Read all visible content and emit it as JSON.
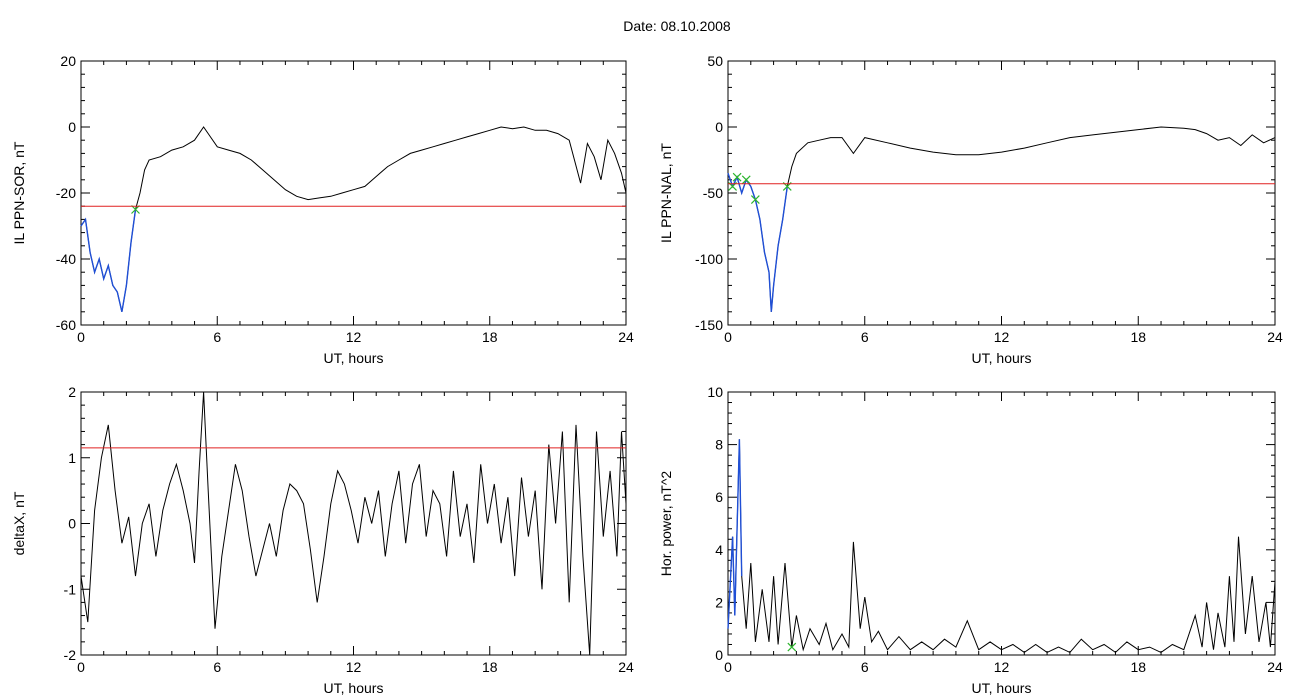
{
  "header": {
    "date_label": "Date:",
    "date_value": "08.10.2008"
  },
  "chart_data": [
    {
      "type": "line",
      "ylabel": "IL PPN-SOR, nT",
      "xlabel": "UT, hours",
      "xlim": [
        0,
        24
      ],
      "ylim": [
        -60,
        20
      ],
      "xticks": [
        0,
        6,
        12,
        18,
        24
      ],
      "yticks": [
        -60,
        -40,
        -20,
        0,
        20
      ],
      "threshold": -24,
      "highlight_range": [
        0,
        2.5
      ],
      "markers": [
        2.4
      ],
      "series": [
        {
          "color": "#000000",
          "points": [
            [
              0,
              -30
            ],
            [
              0.2,
              -28
            ],
            [
              0.4,
              -38
            ],
            [
              0.6,
              -44
            ],
            [
              0.8,
              -40
            ],
            [
              1.0,
              -46
            ],
            [
              1.2,
              -42
            ],
            [
              1.4,
              -48
            ],
            [
              1.6,
              -50
            ],
            [
              1.8,
              -56
            ],
            [
              2.0,
              -48
            ],
            [
              2.2,
              -35
            ],
            [
              2.4,
              -25
            ],
            [
              2.6,
              -20
            ],
            [
              2.8,
              -13
            ],
            [
              3.0,
              -10
            ],
            [
              3.5,
              -9
            ],
            [
              4.0,
              -7
            ],
            [
              4.5,
              -6
            ],
            [
              5.0,
              -4
            ],
            [
              5.4,
              0
            ],
            [
              5.6,
              -2
            ],
            [
              6.0,
              -6
            ],
            [
              6.5,
              -7
            ],
            [
              7.0,
              -8
            ],
            [
              7.5,
              -10
            ],
            [
              8.0,
              -13
            ],
            [
              8.5,
              -16
            ],
            [
              9.0,
              -19
            ],
            [
              9.5,
              -21
            ],
            [
              10.0,
              -22
            ],
            [
              10.5,
              -21.5
            ],
            [
              11.0,
              -21
            ],
            [
              11.5,
              -20
            ],
            [
              12.0,
              -19
            ],
            [
              12.5,
              -18
            ],
            [
              13.0,
              -15
            ],
            [
              13.5,
              -12
            ],
            [
              14.0,
              -10
            ],
            [
              14.5,
              -8
            ],
            [
              15.0,
              -7
            ],
            [
              15.5,
              -6
            ],
            [
              16.0,
              -5
            ],
            [
              16.5,
              -4
            ],
            [
              17.0,
              -3
            ],
            [
              17.5,
              -2
            ],
            [
              18.0,
              -1
            ],
            [
              18.5,
              0
            ],
            [
              19.0,
              -0.5
            ],
            [
              19.5,
              0
            ],
            [
              20.0,
              -1
            ],
            [
              20.5,
              -1
            ],
            [
              21.0,
              -2
            ],
            [
              21.5,
              -4
            ],
            [
              22.0,
              -17
            ],
            [
              22.3,
              -5
            ],
            [
              22.6,
              -9
            ],
            [
              22.9,
              -16
            ],
            [
              23.2,
              -4
            ],
            [
              23.5,
              -8
            ],
            [
              23.8,
              -14
            ],
            [
              24.0,
              -20
            ]
          ]
        }
      ]
    },
    {
      "type": "line",
      "ylabel": "IL PPN-NAL, nT",
      "xlabel": "UT, hours",
      "xlim": [
        0,
        24
      ],
      "ylim": [
        -150,
        50
      ],
      "xticks": [
        0,
        6,
        12,
        18,
        24
      ],
      "yticks": [
        -150,
        -100,
        -50,
        0,
        50
      ],
      "threshold": -43,
      "highlight_range": [
        0,
        2.7
      ],
      "markers": [
        0.2,
        0.5,
        0.9,
        1.2,
        2.6
      ],
      "series": [
        {
          "color": "#000000",
          "points": [
            [
              0,
              -35
            ],
            [
              0.2,
              -45
            ],
            [
              0.4,
              -38
            ],
            [
              0.6,
              -50
            ],
            [
              0.8,
              -40
            ],
            [
              1.0,
              -45
            ],
            [
              1.2,
              -55
            ],
            [
              1.4,
              -70
            ],
            [
              1.6,
              -95
            ],
            [
              1.8,
              -110
            ],
            [
              1.9,
              -140
            ],
            [
              2.0,
              -120
            ],
            [
              2.2,
              -90
            ],
            [
              2.4,
              -70
            ],
            [
              2.6,
              -45
            ],
            [
              2.8,
              -30
            ],
            [
              3.0,
              -20
            ],
            [
              3.5,
              -12
            ],
            [
              4.0,
              -10
            ],
            [
              4.5,
              -8
            ],
            [
              5.0,
              -8
            ],
            [
              5.5,
              -20
            ],
            [
              6.0,
              -8
            ],
            [
              7.0,
              -12
            ],
            [
              8.0,
              -16
            ],
            [
              9.0,
              -19
            ],
            [
              10.0,
              -21
            ],
            [
              11.0,
              -21
            ],
            [
              12.0,
              -19
            ],
            [
              13.0,
              -16
            ],
            [
              14.0,
              -12
            ],
            [
              15.0,
              -8
            ],
            [
              16.0,
              -6
            ],
            [
              17.0,
              -4
            ],
            [
              18.0,
              -2
            ],
            [
              19.0,
              0
            ],
            [
              20.0,
              -1
            ],
            [
              20.5,
              -2
            ],
            [
              21.0,
              -5
            ],
            [
              21.5,
              -10
            ],
            [
              22.0,
              -8
            ],
            [
              22.5,
              -14
            ],
            [
              23.0,
              -6
            ],
            [
              23.5,
              -12
            ],
            [
              24.0,
              -8
            ]
          ]
        }
      ]
    },
    {
      "type": "line",
      "ylabel": "deltaX, nT",
      "xlabel": "UT, hours",
      "xlim": [
        0,
        24
      ],
      "ylim": [
        -2,
        2
      ],
      "xticks": [
        0,
        6,
        12,
        18,
        24
      ],
      "yticks": [
        -2,
        -1,
        0,
        1,
        2
      ],
      "threshold": 1.15,
      "series": [
        {
          "color": "#000000",
          "points": [
            [
              0,
              -0.8
            ],
            [
              0.3,
              -1.5
            ],
            [
              0.6,
              0.2
            ],
            [
              0.9,
              1.0
            ],
            [
              1.2,
              1.5
            ],
            [
              1.5,
              0.5
            ],
            [
              1.8,
              -0.3
            ],
            [
              2.1,
              0.1
            ],
            [
              2.4,
              -0.8
            ],
            [
              2.7,
              0.0
            ],
            [
              3.0,
              0.3
            ],
            [
              3.3,
              -0.5
            ],
            [
              3.6,
              0.2
            ],
            [
              3.9,
              0.6
            ],
            [
              4.2,
              0.9
            ],
            [
              4.5,
              0.5
            ],
            [
              4.8,
              0.0
            ],
            [
              5.0,
              -0.6
            ],
            [
              5.2,
              0.8
            ],
            [
              5.4,
              2.0
            ],
            [
              5.6,
              0.5
            ],
            [
              5.9,
              -1.6
            ],
            [
              6.2,
              -0.5
            ],
            [
              6.5,
              0.2
            ],
            [
              6.8,
              0.9
            ],
            [
              7.1,
              0.5
            ],
            [
              7.4,
              -0.2
            ],
            [
              7.7,
              -0.8
            ],
            [
              8.0,
              -0.4
            ],
            [
              8.3,
              0.0
            ],
            [
              8.6,
              -0.5
            ],
            [
              8.9,
              0.2
            ],
            [
              9.2,
              0.6
            ],
            [
              9.5,
              0.5
            ],
            [
              9.8,
              0.3
            ],
            [
              10.1,
              -0.4
            ],
            [
              10.4,
              -1.2
            ],
            [
              10.7,
              -0.5
            ],
            [
              11.0,
              0.3
            ],
            [
              11.3,
              0.8
            ],
            [
              11.6,
              0.6
            ],
            [
              11.9,
              0.2
            ],
            [
              12.2,
              -0.3
            ],
            [
              12.5,
              0.4
            ],
            [
              12.8,
              0.0
            ],
            [
              13.1,
              0.5
            ],
            [
              13.4,
              -0.5
            ],
            [
              13.7,
              0.3
            ],
            [
              14.0,
              0.8
            ],
            [
              14.3,
              -0.3
            ],
            [
              14.6,
              0.6
            ],
            [
              14.9,
              0.9
            ],
            [
              15.2,
              -0.2
            ],
            [
              15.5,
              0.5
            ],
            [
              15.8,
              0.3
            ],
            [
              16.1,
              -0.5
            ],
            [
              16.4,
              0.8
            ],
            [
              16.7,
              -0.2
            ],
            [
              17.0,
              0.3
            ],
            [
              17.3,
              -0.6
            ],
            [
              17.6,
              0.9
            ],
            [
              17.9,
              0.0
            ],
            [
              18.2,
              0.6
            ],
            [
              18.5,
              -0.3
            ],
            [
              18.8,
              0.4
            ],
            [
              19.1,
              -0.8
            ],
            [
              19.4,
              0.7
            ],
            [
              19.7,
              -0.2
            ],
            [
              20.0,
              0.5
            ],
            [
              20.3,
              -1.0
            ],
            [
              20.6,
              1.2
            ],
            [
              20.9,
              0.0
            ],
            [
              21.2,
              1.4
            ],
            [
              21.5,
              -1.2
            ],
            [
              21.8,
              1.5
            ],
            [
              22.1,
              -0.5
            ],
            [
              22.4,
              -2.0
            ],
            [
              22.7,
              1.4
            ],
            [
              23.0,
              -0.2
            ],
            [
              23.3,
              0.8
            ],
            [
              23.6,
              -0.5
            ],
            [
              23.8,
              1.4
            ],
            [
              24.0,
              0.3
            ]
          ]
        }
      ]
    },
    {
      "type": "line",
      "ylabel": "Hor. power, nT^2",
      "xlabel": "UT, hours",
      "xlim": [
        0,
        24
      ],
      "ylim": [
        0,
        10
      ],
      "xticks": [
        0,
        6,
        12,
        18,
        24
      ],
      "yticks": [
        0,
        2,
        4,
        6,
        8,
        10
      ],
      "highlight_range": [
        0,
        0.6
      ],
      "markers": [
        2.7
      ],
      "series": [
        {
          "color": "#000000",
          "points": [
            [
              0,
              1.0
            ],
            [
              0.2,
              4.5
            ],
            [
              0.3,
              1.5
            ],
            [
              0.5,
              8.2
            ],
            [
              0.6,
              3.0
            ],
            [
              0.8,
              1.0
            ],
            [
              1.0,
              3.5
            ],
            [
              1.2,
              0.5
            ],
            [
              1.5,
              2.5
            ],
            [
              1.8,
              0.5
            ],
            [
              2.0,
              3.0
            ],
            [
              2.2,
              0.4
            ],
            [
              2.5,
              3.5
            ],
            [
              2.8,
              0.3
            ],
            [
              3.0,
              1.5
            ],
            [
              3.3,
              0.2
            ],
            [
              3.6,
              1.0
            ],
            [
              4.0,
              0.4
            ],
            [
              4.3,
              1.2
            ],
            [
              4.6,
              0.2
            ],
            [
              5.0,
              0.8
            ],
            [
              5.3,
              0.3
            ],
            [
              5.5,
              4.3
            ],
            [
              5.8,
              1.0
            ],
            [
              6.0,
              2.2
            ],
            [
              6.3,
              0.5
            ],
            [
              6.6,
              0.9
            ],
            [
              7.0,
              0.2
            ],
            [
              7.5,
              0.7
            ],
            [
              8.0,
              0.2
            ],
            [
              8.5,
              0.5
            ],
            [
              9.0,
              0.2
            ],
            [
              9.5,
              0.6
            ],
            [
              10.0,
              0.3
            ],
            [
              10.5,
              1.3
            ],
            [
              11.0,
              0.2
            ],
            [
              11.5,
              0.5
            ],
            [
              12.0,
              0.2
            ],
            [
              12.5,
              0.4
            ],
            [
              13.0,
              0.1
            ],
            [
              13.5,
              0.4
            ],
            [
              14.0,
              0.1
            ],
            [
              14.5,
              0.3
            ],
            [
              15.0,
              0.1
            ],
            [
              15.5,
              0.6
            ],
            [
              16.0,
              0.2
            ],
            [
              16.5,
              0.4
            ],
            [
              17.0,
              0.1
            ],
            [
              17.5,
              0.5
            ],
            [
              18.0,
              0.2
            ],
            [
              18.5,
              0.3
            ],
            [
              19.0,
              0.1
            ],
            [
              19.5,
              0.4
            ],
            [
              20.0,
              0.2
            ],
            [
              20.5,
              1.5
            ],
            [
              20.8,
              0.3
            ],
            [
              21.0,
              2.0
            ],
            [
              21.3,
              0.2
            ],
            [
              21.5,
              1.6
            ],
            [
              21.8,
              0.3
            ],
            [
              22.0,
              3.0
            ],
            [
              22.2,
              0.5
            ],
            [
              22.4,
              4.5
            ],
            [
              22.7,
              0.8
            ],
            [
              23.0,
              3.0
            ],
            [
              23.3,
              0.5
            ],
            [
              23.6,
              2.0
            ],
            [
              23.8,
              0.3
            ],
            [
              24.0,
              2.8
            ]
          ]
        }
      ]
    }
  ]
}
